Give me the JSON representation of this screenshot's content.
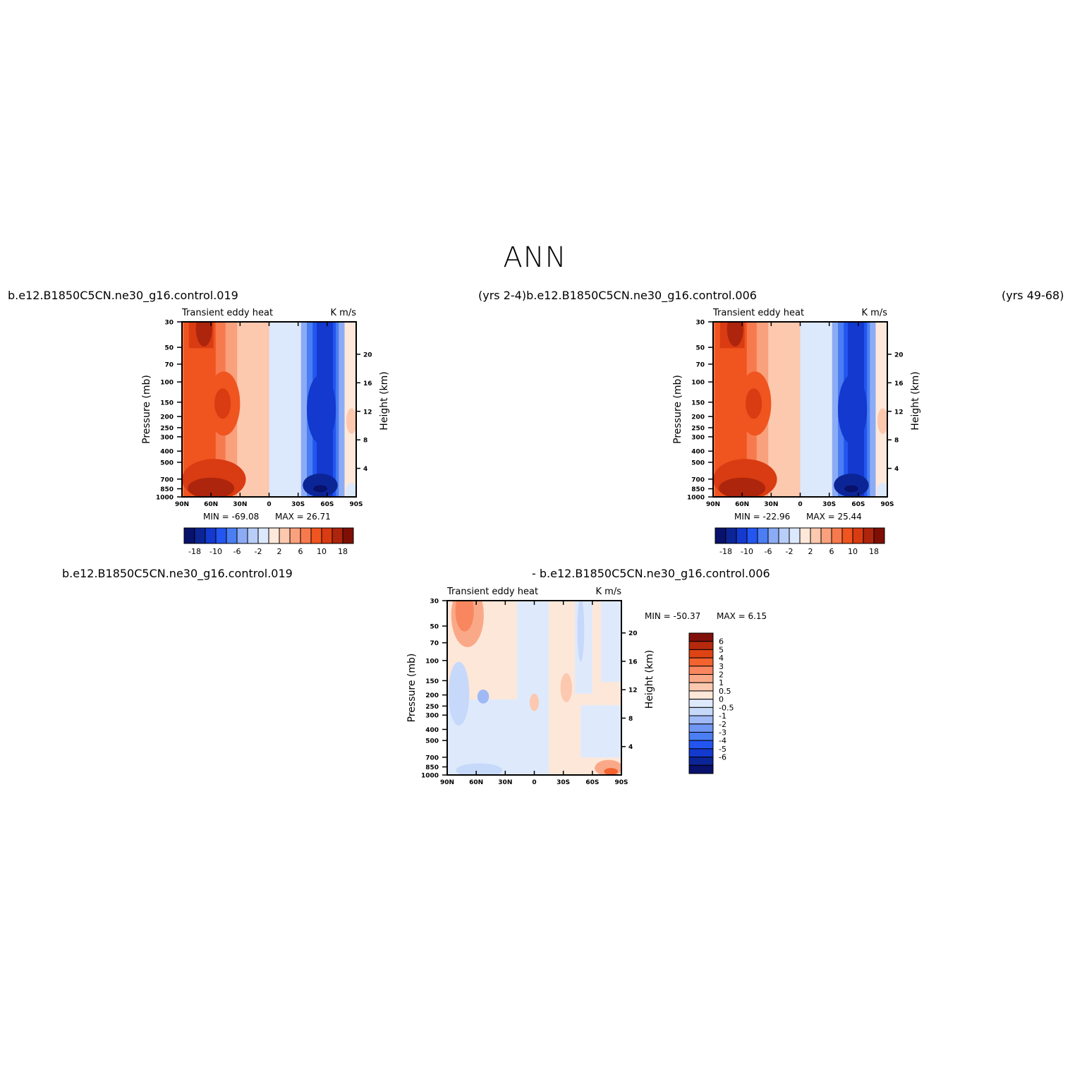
{
  "main_title": "ANN",
  "headers": {
    "left_case": "b.e12.B1850C5CN.ne30_g16.control.019",
    "center_text": "(yrs 2-4)b.e12.B1850C5CN.ne30_g16.control.006",
    "right_years": "(yrs 49-68)",
    "diff_left": "b.e12.B1850C5CN.ne30_g16.control.019",
    "diff_right": "- b.e12.B1850C5CN.ne30_g16.control.006"
  },
  "colors": {
    "case_scale": [
      "#08116b",
      "#0c2596",
      "#1339cf",
      "#2356f0",
      "#4a7ef2",
      "#8cabf5",
      "#b8cdf8",
      "#dce8fb",
      "#fee8da",
      "#fcc8ae",
      "#f9a07c",
      "#f77a4e",
      "#f0541f",
      "#d93b12",
      "#ad250c",
      "#7f0f05"
    ],
    "diff_scale": [
      "#08116b",
      "#0c2596",
      "#1339cf",
      "#2356f0",
      "#4a7ef2",
      "#6f96f3",
      "#9eb9f6",
      "#c7d9fa",
      "#deeafc",
      "#fde7d9",
      "#fcc9b0",
      "#faa988",
      "#f8875f",
      "#f2632f",
      "#de4314",
      "#b5290c",
      "#80110a"
    ]
  },
  "chart_data": [
    {
      "type": "heatmap",
      "name": "panel-1",
      "title_left": "Transient eddy heat",
      "title_right": "K m/s",
      "ylabel": "Pressure (mb)",
      "ylabel_right": "Height (km)",
      "x_ticks": [
        "90N",
        "60N",
        "30N",
        "0",
        "30S",
        "60S",
        "90S"
      ],
      "x_range": [
        90,
        -90
      ],
      "y_ticks": [
        30,
        50,
        70,
        100,
        150,
        200,
        250,
        300,
        400,
        500,
        700,
        850,
        1000
      ],
      "y_range": [
        30,
        1000
      ],
      "y_scale": "log",
      "height_ticks": [
        20,
        16,
        12,
        8,
        4
      ],
      "min_label": "MIN =",
      "min": "-69.08",
      "max_label": "MAX =",
      "max": "26.71",
      "colorbar_orientation": "horizontal",
      "colorbar_labels": [
        "-18",
        "-10",
        "-6",
        "-2",
        "2",
        "6",
        "10",
        "18"
      ]
    },
    {
      "type": "heatmap",
      "name": "panel-2",
      "title_left": "Transient eddy heat",
      "title_right": "K m/s",
      "ylabel": "Pressure (mb)",
      "ylabel_right": "Height (km)",
      "x_ticks": [
        "90N",
        "60N",
        "30N",
        "0",
        "30S",
        "60S",
        "90S"
      ],
      "x_range": [
        90,
        -90
      ],
      "y_ticks": [
        30,
        50,
        70,
        100,
        150,
        200,
        250,
        300,
        400,
        500,
        700,
        850,
        1000
      ],
      "y_range": [
        30,
        1000
      ],
      "y_scale": "log",
      "height_ticks": [
        20,
        16,
        12,
        8,
        4
      ],
      "min_label": "MIN =",
      "min": "-22.96",
      "max_label": "MAX =",
      "max": "25.44",
      "colorbar_orientation": "horizontal",
      "colorbar_labels": [
        "-18",
        "-10",
        "-6",
        "-2",
        "2",
        "6",
        "10",
        "18"
      ]
    },
    {
      "type": "heatmap",
      "name": "panel-diff",
      "title_left": "Transient eddy heat",
      "title_right": "K m/s",
      "ylabel": "Pressure (mb)",
      "ylabel_right": "Height (km)",
      "x_ticks": [
        "90N",
        "60N",
        "30N",
        "0",
        "30S",
        "60S",
        "90S"
      ],
      "x_range": [
        90,
        -90
      ],
      "y_ticks": [
        30,
        50,
        70,
        100,
        150,
        200,
        250,
        300,
        400,
        500,
        700,
        850,
        1000
      ],
      "y_range": [
        30,
        1000
      ],
      "y_scale": "log",
      "height_ticks": [
        20,
        16,
        12,
        8,
        4
      ],
      "min_label": "MIN =",
      "min": "-50.37",
      "max_label": "MAX =",
      "max": "6.15",
      "colorbar_orientation": "vertical",
      "colorbar_labels": [
        "6",
        "5",
        "4",
        "3",
        "2",
        "1",
        "0.5",
        "0",
        "-0.5",
        "-1",
        "-2",
        "-3",
        "-4",
        "-5",
        "-6"
      ]
    }
  ]
}
